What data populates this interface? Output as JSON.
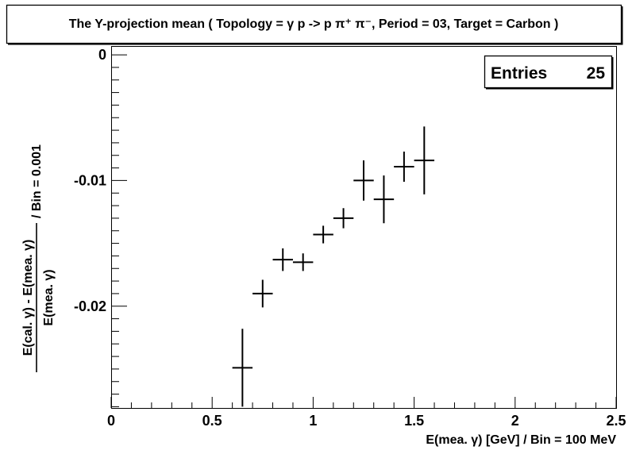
{
  "chart_data": {
    "type": "scatter",
    "title": "The Y-projection mean ( Topology = γ p -> p π⁺ π⁻, Period = 03, Target = Carbon )",
    "xlabel": "E(mea. γ) [GeV] / Bin = 100 MeV",
    "ylabel": {
      "numerator": "E(cal. γ) - E(mea. γ)",
      "denominator": "E(mea. γ)",
      "suffix": "/ Bin = 0.001"
    },
    "xlim": [
      0,
      2.5
    ],
    "ylim": [
      -0.0281,
      0.0007
    ],
    "x_ticks": [
      {
        "value": 0,
        "label": "0"
      },
      {
        "value": 0.5,
        "label": "0.5"
      },
      {
        "value": 1,
        "label": "1"
      },
      {
        "value": 1.5,
        "label": "1.5"
      },
      {
        "value": 2,
        "label": "2"
      },
      {
        "value": 2.5,
        "label": "2.5"
      }
    ],
    "y_ticks": [
      {
        "value": 0,
        "label": "0"
      },
      {
        "value": -0.01,
        "label": "-0.01"
      },
      {
        "value": -0.02,
        "label": "-0.02"
      }
    ],
    "x_bin_half_width": 0.05,
    "points": [
      {
        "x": 0.65,
        "y": -0.0249,
        "yerr": 0.0031
      },
      {
        "x": 0.75,
        "y": -0.019,
        "yerr": 0.0011
      },
      {
        "x": 0.85,
        "y": -0.0163,
        "yerr": 0.0009
      },
      {
        "x": 0.95,
        "y": -0.0165,
        "yerr": 0.0007
      },
      {
        "x": 1.05,
        "y": -0.0143,
        "yerr": 0.0007
      },
      {
        "x": 1.15,
        "y": -0.013,
        "yerr": 0.0008
      },
      {
        "x": 1.25,
        "y": -0.01,
        "yerr": 0.0016
      },
      {
        "x": 1.35,
        "y": -0.0115,
        "yerr": 0.0019
      },
      {
        "x": 1.45,
        "y": -0.0089,
        "yerr": 0.0012
      },
      {
        "x": 1.55,
        "y": -0.0084,
        "yerr": 0.0027
      }
    ],
    "stats": {
      "label": "Entries",
      "value": "25"
    },
    "legend_position": "top-right",
    "grid": false
  }
}
